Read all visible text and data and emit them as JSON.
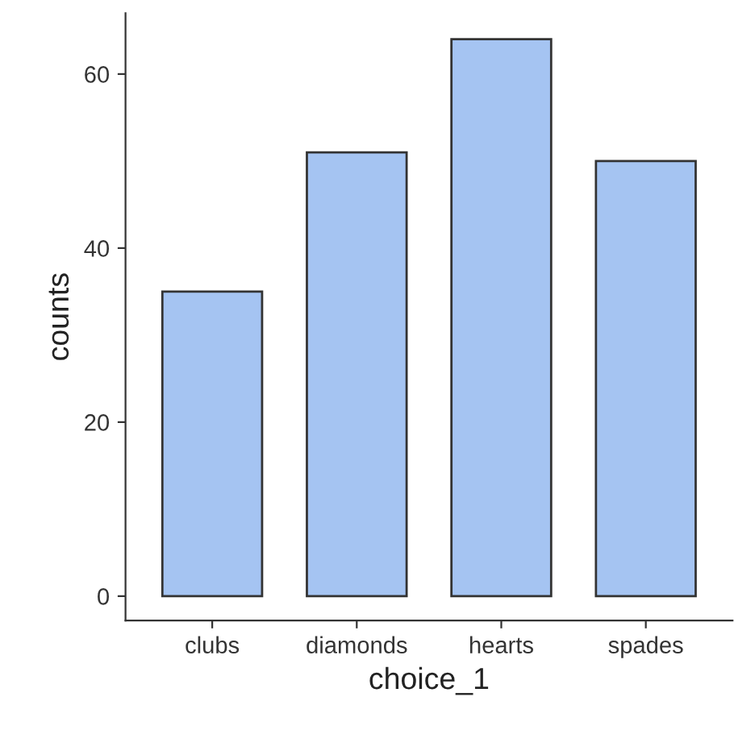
{
  "chart_data": {
    "type": "bar",
    "xlabel": "choice_1",
    "ylabel": "counts",
    "categories": [
      "clubs",
      "diamonds",
      "hearts",
      "spades"
    ],
    "values": [
      35,
      51,
      64,
      50
    ],
    "color": "#a5c4f2",
    "ylim": [
      -2.8,
      67
    ],
    "yticks": [
      0,
      20,
      40,
      60
    ],
    "grid": false,
    "legend": false
  }
}
